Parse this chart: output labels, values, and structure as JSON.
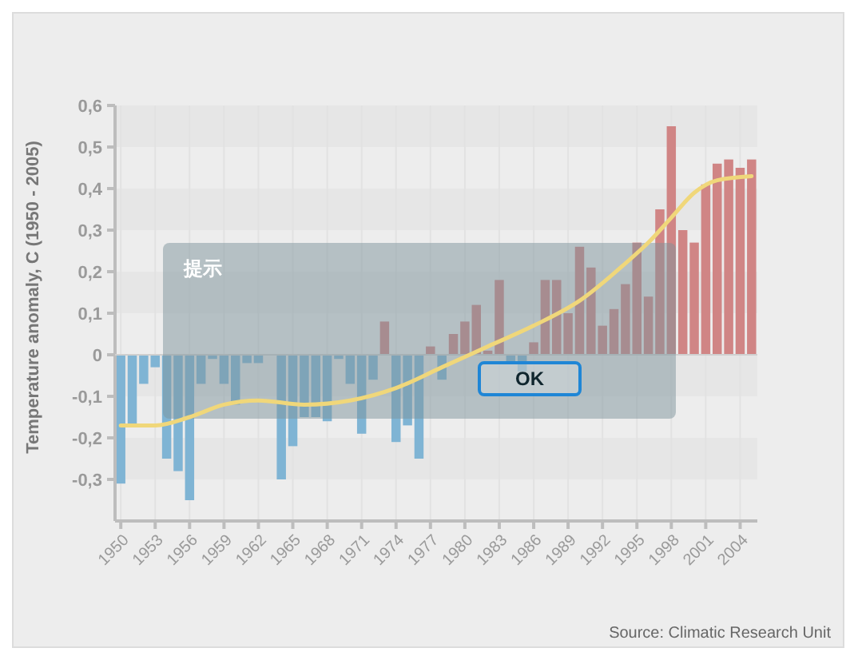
{
  "chart_data": {
    "type": "bar",
    "ylabel": "Temperature anomaly, C (1950 - 2005)",
    "annotations": [
      "Source: Climatic Research Unit",
      "提示",
      "OK"
    ],
    "x": [
      1950,
      1951,
      1952,
      1953,
      1954,
      1955,
      1956,
      1957,
      1958,
      1959,
      1960,
      1961,
      1962,
      1963,
      1964,
      1965,
      1966,
      1967,
      1968,
      1969,
      1970,
      1971,
      1972,
      1973,
      1974,
      1975,
      1976,
      1977,
      1978,
      1979,
      1980,
      1981,
      1982,
      1983,
      1984,
      1985,
      1986,
      1987,
      1988,
      1989,
      1990,
      1991,
      1992,
      1993,
      1994,
      1995,
      1996,
      1997,
      1998,
      1999,
      2000,
      2001,
      2002,
      2003,
      2004,
      2005
    ],
    "xlim": [
      1949.5,
      2005.5
    ],
    "xticks": [
      1950,
      1953,
      1956,
      1959,
      1962,
      1965,
      1968,
      1971,
      1974,
      1977,
      1980,
      1983,
      1986,
      1989,
      1992,
      1995,
      1998,
      2001,
      2004
    ],
    "ylim": [
      -0.4,
      0.6
    ],
    "yticks": [
      {
        "value": -0.3,
        "label": "-0,3"
      },
      {
        "value": -0.2,
        "label": "-0,2"
      },
      {
        "value": -0.1,
        "label": "-0,1"
      },
      0,
      {
        "value": 0.1,
        "label": "0,1"
      },
      {
        "value": 0.2,
        "label": "0,2"
      },
      {
        "value": 0.3,
        "label": "0,3"
      },
      {
        "value": 0.4,
        "label": "0,4"
      },
      {
        "value": 0.5,
        "label": "0,5"
      },
      {
        "value": 0.6,
        "label": "0,6"
      }
    ],
    "grid": true,
    "series": [
      {
        "values": [
          -0.31,
          -0.17,
          -0.07,
          -0.03,
          -0.25,
          -0.28,
          -0.35,
          -0.07,
          -0.01,
          -0.07,
          -0.12,
          -0.02,
          -0.02,
          0,
          -0.3,
          -0.22,
          -0.15,
          -0.15,
          -0.16,
          -0.01,
          -0.07,
          -0.19,
          -0.06,
          0.08,
          -0.21,
          -0.17,
          -0.25,
          0.02,
          -0.06,
          0.05,
          0.08,
          0.12,
          0.01,
          0.18,
          -0.02,
          -0.04,
          0.03,
          0.18,
          0.18,
          0.1,
          0.26,
          0.21,
          0.07,
          0.11,
          0.17,
          0.27,
          0.14,
          0.35,
          0.55,
          0.3,
          0.27,
          0.41,
          0.46,
          0.47,
          0.45,
          0.47
        ],
        "colors": [
          "#7fb4d4",
          "#7fb4d4",
          "#7fb4d4",
          "#7fb4d4",
          "#7fb4d4",
          "#7fb4d4",
          "#7fb4d4",
          "#7fb4d4",
          "#7fb4d4",
          "#7fb4d4",
          "#7fb4d4",
          "#7fb4d4",
          "#7fb4d4",
          "#7fb4d4",
          "#7fb4d4",
          "#7fb4d4",
          "#7fb4d4",
          "#7fb4d4",
          "#7fb4d4",
          "#7fb4d4",
          "#7fb4d4",
          "#7fb4d4",
          "#7fb4d4",
          "#d08585",
          "#7fb4d4",
          "#7fb4d4",
          "#7fb4d4",
          "#d08585",
          "#7fb4d4",
          "#d08585",
          "#d08585",
          "#d08585",
          "#d08585",
          "#d08585",
          "#7fb4d4",
          "#7fb4d4",
          "#d08585",
          "#d08585",
          "#d08585",
          "#d08585",
          "#d08585",
          "#d08585",
          "#d08585",
          "#d08585",
          "#d08585",
          "#d08585",
          "#d08585",
          "#d08585",
          "#d08585",
          "#d08585",
          "#d08585",
          "#d08585",
          "#d08585",
          "#d08585",
          "#d08585",
          "#d08585"
        ]
      },
      {
        "type": "line",
        "color": "#f0d77a",
        "x": [
          1950,
          1953,
          1956,
          1959,
          1962,
          1966,
          1970,
          1974,
          1978,
          1982,
          1986,
          1990,
          1994,
          1996,
          1998,
          2000,
          2002,
          2005
        ],
        "values": [
          -0.17,
          -0.17,
          -0.15,
          -0.12,
          -0.11,
          -0.12,
          -0.11,
          -0.08,
          -0.03,
          0.02,
          0.07,
          0.13,
          0.22,
          0.27,
          0.33,
          0.39,
          0.42,
          0.43
        ]
      }
    ]
  }
}
